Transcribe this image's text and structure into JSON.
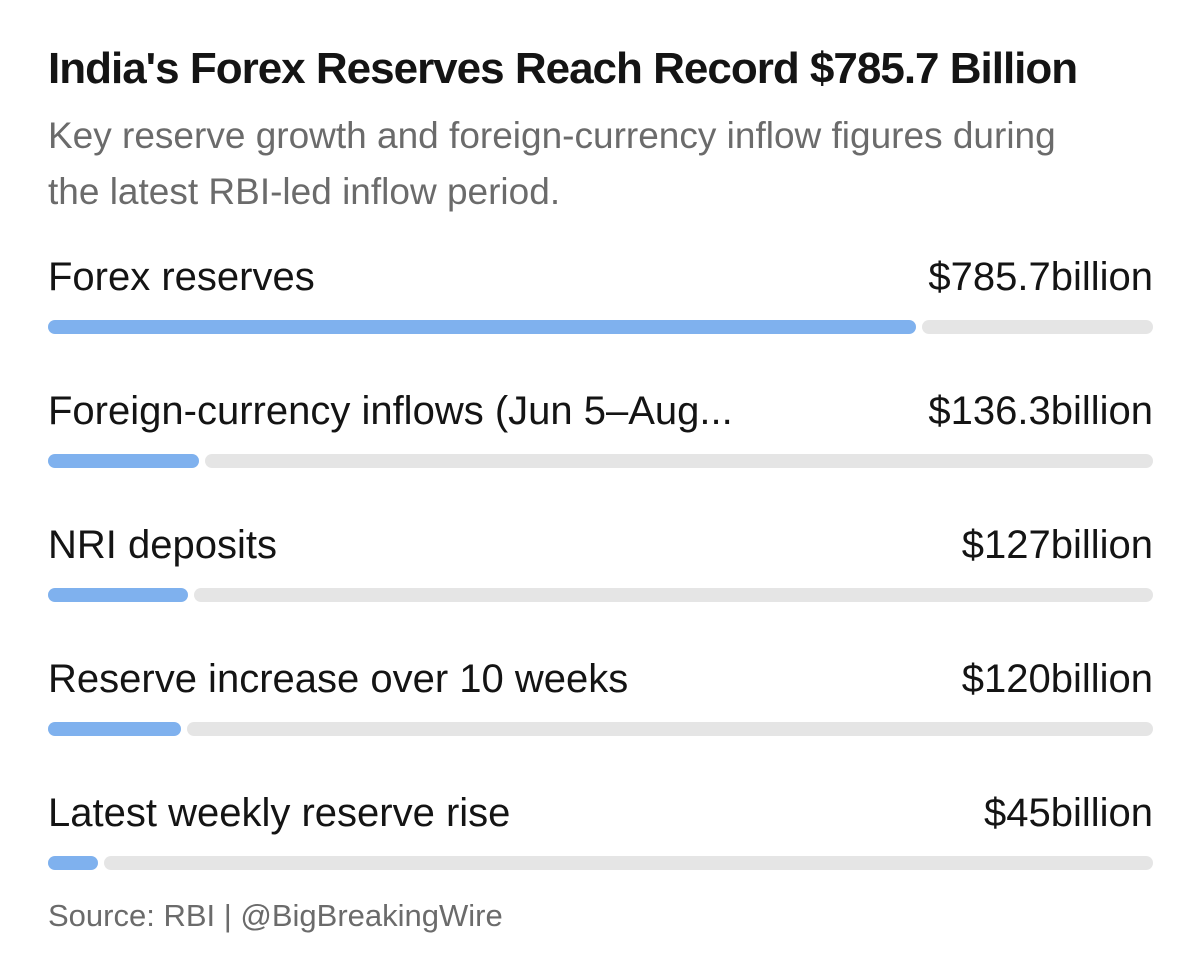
{
  "chart_data": {
    "type": "bar",
    "orientation": "horizontal",
    "title": "India's Forex Reserves Reach Record $785.7 Billion",
    "subtitle": "Key reserve growth and foreign-currency inflow figures during the latest RBI-led inflow period.",
    "unit": "billion",
    "categories": [
      "Forex reserves",
      "Foreign-currency inflows (Jun 5–Aug...",
      "NRI deposits",
      "Reserve increase over 10 weeks",
      "Latest weekly reserve rise"
    ],
    "values": [
      785.7,
      136.3,
      127,
      120,
      45
    ],
    "value_labels": [
      "$785.7billion",
      "$136.3billion",
      "$127billion",
      "$120billion",
      "$45billion"
    ],
    "xlim": [
      0,
      1000
    ],
    "colors": {
      "bar": "#7fb1ee",
      "track": "#e5e5e5"
    },
    "grid": false,
    "legend": "none",
    "source": "Source: RBI | @BigBreakingWire"
  }
}
